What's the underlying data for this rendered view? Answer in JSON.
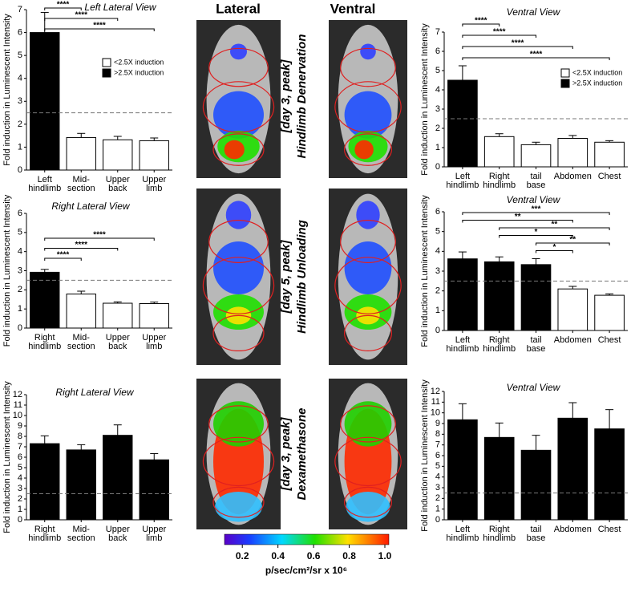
{
  "figure": {
    "column_titles": [
      "Lateral",
      "Ventral"
    ],
    "row_labels": [
      [
        "[day 3, peak]",
        "Hindlimb Denervation"
      ],
      [
        "[day 5, peak]",
        "Hindlimb Unloading"
      ],
      [
        "[day 3, peak]",
        "Dexamethasone"
      ]
    ],
    "colorbar": {
      "xlim": [
        0.1,
        1.0
      ],
      "ticks": [
        0.2,
        0.4,
        0.6,
        0.8,
        {
          "value": 1,
          "label": "1.0"
        }
      ],
      "label": "p/sec/cm²/sr x 10⁶"
    }
  },
  "chart_data": [
    {
      "type": "bar",
      "title": "Left Lateral View",
      "ylabel": "Fold induction in Luminescent Intensity",
      "categories": [
        [
          "Left",
          "hindlimb"
        ],
        [
          "Mid-",
          "section"
        ],
        [
          "Upper",
          "back"
        ],
        [
          "Upper",
          "limb"
        ]
      ],
      "values": [
        6.0,
        1.42,
        1.32,
        1.28
      ],
      "errors": [
        0.88,
        0.18,
        0.15,
        0.12
      ],
      "colors": [
        "#000000",
        "#ffffff",
        "#ffffff",
        "#ffffff"
      ],
      "threshold": 2.5,
      "ylim": [
        0,
        7
      ],
      "yticks": [
        0,
        1,
        2,
        3,
        4,
        5,
        6,
        7
      ],
      "legend": [
        {
          "label": "<2.5X induction",
          "color": "#ffffff"
        },
        {
          "label": ">2.5X induction",
          "color": "#000000"
        }
      ],
      "brackets": [
        {
          "from": 0,
          "to": 1,
          "label": "****"
        },
        {
          "from": 0,
          "to": 2,
          "label": "****"
        },
        {
          "from": 0,
          "to": 3,
          "label": "****"
        }
      ]
    },
    {
      "type": "bar",
      "title": "Right Lateral View",
      "ylabel": "Fold induction in Luminescent Intensity",
      "categories": [
        [
          "Right",
          "hindlimb"
        ],
        [
          "Mid-",
          "section"
        ],
        [
          "Upper",
          "back"
        ],
        [
          "Upper",
          "limb"
        ]
      ],
      "values": [
        2.92,
        1.78,
        1.3,
        1.28
      ],
      "errors": [
        0.15,
        0.15,
        0.07,
        0.08
      ],
      "colors": [
        "#000000",
        "#ffffff",
        "#ffffff",
        "#ffffff"
      ],
      "threshold": 2.5,
      "ylim": [
        0,
        6
      ],
      "yticks": [
        0,
        1,
        2,
        3,
        4,
        5,
        6
      ],
      "brackets": [
        {
          "from": 0,
          "to": 3,
          "label": "****"
        },
        {
          "from": 0,
          "to": 2,
          "label": "****"
        },
        {
          "from": 0,
          "to": 1,
          "label": "****"
        }
      ]
    },
    {
      "type": "bar",
      "title": "Right Lateral View",
      "ylabel": "Fold induction in Luminescent Intensity",
      "categories": [
        [
          "Right",
          "hindlimb"
        ],
        [
          "Mid-",
          "section"
        ],
        [
          "Upper",
          "back"
        ],
        [
          "Upper",
          "limb"
        ]
      ],
      "values": [
        7.3,
        6.7,
        8.1,
        5.75
      ],
      "errors": [
        0.75,
        0.5,
        1.0,
        0.6
      ],
      "colors": [
        "#000000",
        "#000000",
        "#000000",
        "#000000"
      ],
      "threshold": 2.5,
      "ylim": [
        0,
        12
      ],
      "yticks": [
        0,
        1,
        2,
        3,
        4,
        5,
        6,
        7,
        8,
        9,
        10,
        11,
        12
      ]
    },
    {
      "type": "bar",
      "title": "Ventral View",
      "ylabel": "Fold induction in Luminescent Intensity",
      "categories": [
        [
          "Left",
          "hindlimb"
        ],
        [
          "Right",
          "hindlimb"
        ],
        [
          "tail",
          "base"
        ],
        [
          "Abdomen"
        ],
        [
          "Chest"
        ]
      ],
      "values": [
        4.5,
        1.57,
        1.15,
        1.48,
        1.28
      ],
      "errors": [
        0.75,
        0.15,
        0.13,
        0.15,
        0.08
      ],
      "colors": [
        "#000000",
        "#ffffff",
        "#ffffff",
        "#ffffff",
        "#ffffff"
      ],
      "threshold": 2.5,
      "ylim": [
        0,
        7
      ],
      "yticks": [
        0,
        1,
        2,
        3,
        4,
        5,
        6,
        7
      ],
      "legend": [
        {
          "label": "<2.5X induction",
          "color": "#ffffff"
        },
        {
          "label": ">2.5X induction",
          "color": "#000000"
        }
      ],
      "brackets": [
        {
          "from": 0,
          "to": 1,
          "label": "****"
        },
        {
          "from": 0,
          "to": 2,
          "label": "****"
        },
        {
          "from": 0,
          "to": 3,
          "label": "****"
        },
        {
          "from": 0,
          "to": 4,
          "label": "****"
        }
      ]
    },
    {
      "type": "bar",
      "title": "Ventral View",
      "ylabel": "Fold induction in Luminescent Intensity",
      "categories": [
        [
          "Left",
          "hindlimb"
        ],
        [
          "Right",
          "hindlimb"
        ],
        [
          "tail",
          "base"
        ],
        [
          "Abdomen"
        ],
        [
          "Chest"
        ]
      ],
      "values": [
        3.62,
        3.47,
        3.33,
        2.1,
        1.78
      ],
      "errors": [
        0.35,
        0.25,
        0.3,
        0.13,
        0.07
      ],
      "colors": [
        "#000000",
        "#000000",
        "#000000",
        "#ffffff",
        "#ffffff"
      ],
      "threshold": 2.5,
      "ylim": [
        0,
        6
      ],
      "yticks": [
        0,
        1,
        2,
        3,
        4,
        5,
        6
      ],
      "brackets": [
        {
          "from": 0,
          "to": 4,
          "label": "***"
        },
        {
          "from": 0,
          "to": 3,
          "label": "**"
        },
        {
          "from": 1,
          "to": 4,
          "label": "**"
        },
        {
          "from": 1,
          "to": 3,
          "label": "*"
        },
        {
          "from": 2,
          "to": 4,
          "label": "**"
        },
        {
          "from": 2,
          "to": 3,
          "label": "*"
        }
      ]
    },
    {
      "type": "bar",
      "title": "Ventral View",
      "ylabel": "Fold induction in Luminescent Intensity",
      "categories": [
        [
          "Left",
          "hindlimb"
        ],
        [
          "Right",
          "hindlimb"
        ],
        [
          "tail",
          "base"
        ],
        [
          "Abdomen"
        ],
        [
          "Chest"
        ]
      ],
      "values": [
        9.35,
        7.7,
        6.5,
        9.5,
        8.5
      ],
      "errors": [
        1.5,
        1.35,
        1.4,
        1.45,
        1.8
      ],
      "colors": [
        "#000000",
        "#000000",
        "#000000",
        "#000000",
        "#000000"
      ],
      "threshold": 2.5,
      "ylim": [
        0,
        12
      ],
      "yticks": [
        0,
        1,
        2,
        3,
        4,
        5,
        6,
        7,
        8,
        9,
        10,
        11,
        12
      ]
    }
  ]
}
